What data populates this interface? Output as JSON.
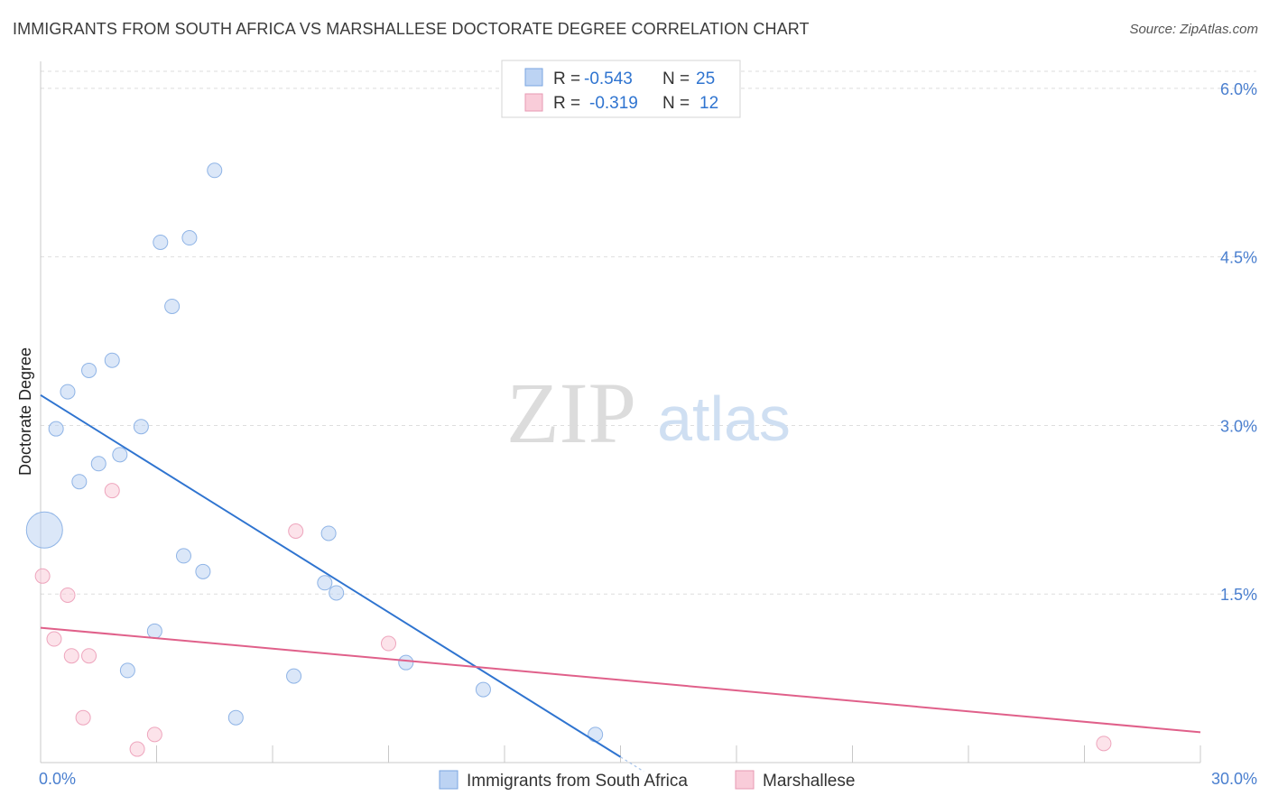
{
  "chart_data": {
    "type": "scatter",
    "title": "IMMIGRANTS FROM SOUTH AFRICA VS MARSHALLESE DOCTORATE DEGREE CORRELATION CHART",
    "source": "Source: ZipAtlas.com",
    "xlabel": "",
    "ylabel": "Doctorate Degree",
    "xlim": [
      0,
      30
    ],
    "ylim": [
      0,
      6.2
    ],
    "x_tick_labels": [
      "0.0%",
      "30.0%"
    ],
    "y_ticks": [
      1.5,
      3.0,
      4.5,
      6.0
    ],
    "y_tick_labels": [
      "1.5%",
      "3.0%",
      "4.5%",
      "6.0%"
    ],
    "grid": true,
    "watermark": "ZIPatlas",
    "legend_stats": [
      {
        "r_label": "R =",
        "r_value": "-0.543",
        "n_label": "N =",
        "n_value": "25"
      },
      {
        "r_label": "R =",
        "r_value": "-0.319",
        "n_label": "N =",
        "n_value": "12"
      }
    ],
    "series": [
      {
        "name": "Immigrants from South Africa",
        "color": "#aac8ef",
        "line_color": "#2f74d0",
        "points": [
          {
            "x": 0.1,
            "y": 2.07,
            "large": true
          },
          {
            "x": 0.4,
            "y": 2.97
          },
          {
            "x": 0.7,
            "y": 3.3
          },
          {
            "x": 1.0,
            "y": 2.5
          },
          {
            "x": 1.25,
            "y": 3.49
          },
          {
            "x": 1.5,
            "y": 2.66
          },
          {
            "x": 1.85,
            "y": 3.58
          },
          {
            "x": 2.05,
            "y": 2.74
          },
          {
            "x": 2.25,
            "y": 0.82
          },
          {
            "x": 2.6,
            "y": 2.99
          },
          {
            "x": 2.95,
            "y": 1.17
          },
          {
            "x": 3.1,
            "y": 4.63
          },
          {
            "x": 3.4,
            "y": 4.06
          },
          {
            "x": 3.7,
            "y": 1.84
          },
          {
            "x": 3.85,
            "y": 4.67
          },
          {
            "x": 4.2,
            "y": 1.7
          },
          {
            "x": 4.5,
            "y": 5.27
          },
          {
            "x": 5.05,
            "y": 0.4
          },
          {
            "x": 6.55,
            "y": 0.77
          },
          {
            "x": 7.35,
            "y": 1.6
          },
          {
            "x": 7.45,
            "y": 2.04
          },
          {
            "x": 7.65,
            "y": 1.51
          },
          {
            "x": 9.45,
            "y": 0.89
          },
          {
            "x": 11.45,
            "y": 0.65
          },
          {
            "x": 14.35,
            "y": 0.25
          }
        ],
        "trend": {
          "x1": 0,
          "y1": 3.27,
          "x2": 15.0,
          "y2": 0.05
        }
      },
      {
        "name": "Marshallese",
        "color": "#f6b9cb",
        "line_color": "#e0608a",
        "points": [
          {
            "x": 0.05,
            "y": 1.66
          },
          {
            "x": 0.35,
            "y": 1.1
          },
          {
            "x": 0.7,
            "y": 1.49
          },
          {
            "x": 0.8,
            "y": 0.95
          },
          {
            "x": 1.1,
            "y": 0.4
          },
          {
            "x": 1.25,
            "y": 0.95
          },
          {
            "x": 1.85,
            "y": 2.42
          },
          {
            "x": 2.5,
            "y": 0.12
          },
          {
            "x": 2.95,
            "y": 0.25
          },
          {
            "x": 6.6,
            "y": 2.06
          },
          {
            "x": 9.0,
            "y": 1.06
          },
          {
            "x": 27.5,
            "y": 0.17
          }
        ],
        "trend": {
          "x1": 0,
          "y1": 1.2,
          "x2": 30,
          "y2": 0.27
        }
      }
    ]
  }
}
